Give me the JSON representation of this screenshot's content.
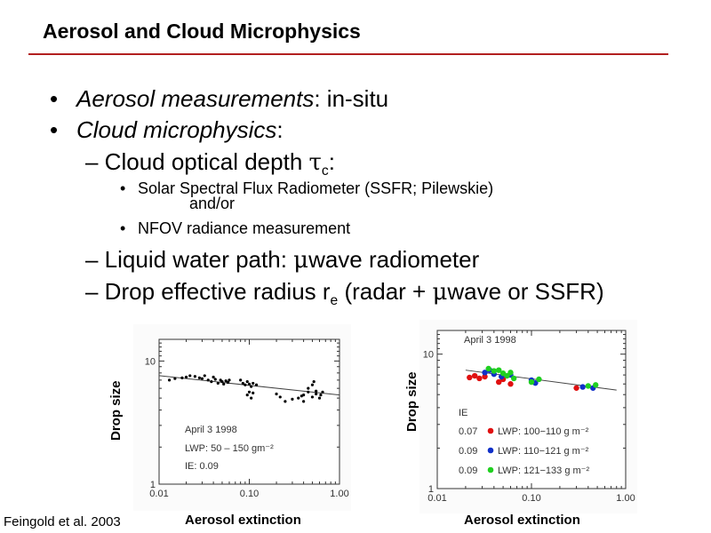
{
  "slide": {
    "title": "Aerosol and Cloud Microphysics",
    "rule_color": "#b21f1f",
    "bullet1_em": "Aerosol measurements",
    "bullet1_rest": ": in-situ",
    "bullet2_em": "Cloud microphysics",
    "bullet2_rest": ":",
    "sub1_text": "– Cloud optical depth ",
    "sub1_tau": "τ",
    "sub1_sub": "c",
    "sub1_end": ":",
    "item1_line1": "Solar Spectral Flux Radiometer (SSFR; Pilewskie)",
    "item1_line2": "and/or",
    "item2": "NFOV radiance measurement",
    "sub2_a": "– Liquid water path: ",
    "sub2_mu": "μ",
    "sub2_b": "wave radiometer",
    "sub3_a": "– Drop effective radius r",
    "sub3_sub": "e",
    "sub3_b": " (radar + ",
    "sub3_mu": "μ",
    "sub3_c": "wave or SSFR)",
    "citation": "Feingold et al. 2003",
    "bullet_glyph": "•"
  },
  "chart_data": [
    {
      "type": "scatter",
      "xscale": "log",
      "yscale": "log",
      "xlim": [
        0.01,
        1.0
      ],
      "ylim": [
        1,
        15
      ],
      "xticks": [
        "0.01",
        "0.10",
        "1.00"
      ],
      "yticks": [
        "10",
        "1"
      ],
      "xlabel": "Aerosol extinction",
      "ylabel": "Drop size",
      "annotations": [
        "April 3 1998",
        "LWP:  50   –   150 gm⁻²",
        "IE:  0.09"
      ],
      "fit_line": [
        [
          0.01,
          7.6
        ],
        [
          1.0,
          5.3
        ]
      ],
      "series": [
        {
          "color": "#000000",
          "points": [
            [
              0.013,
              7.0
            ],
            [
              0.015,
              7.2
            ],
            [
              0.018,
              7.3
            ],
            [
              0.02,
              7.4
            ],
            [
              0.022,
              7.6
            ],
            [
              0.025,
              7.5
            ],
            [
              0.028,
              7.3
            ],
            [
              0.03,
              7.2
            ],
            [
              0.032,
              7.6
            ],
            [
              0.035,
              7.0
            ],
            [
              0.038,
              6.8
            ],
            [
              0.04,
              7.4
            ],
            [
              0.042,
              7.1
            ],
            [
              0.045,
              6.6
            ],
            [
              0.048,
              7.0
            ],
            [
              0.05,
              6.8
            ],
            [
              0.052,
              6.5
            ],
            [
              0.055,
              6.9
            ],
            [
              0.058,
              6.7
            ],
            [
              0.06,
              7.0
            ],
            [
              0.08,
              7.0
            ],
            [
              0.085,
              6.6
            ],
            [
              0.09,
              6.4
            ],
            [
              0.095,
              6.8
            ],
            [
              0.1,
              6.5
            ],
            [
              0.105,
              6.2
            ],
            [
              0.11,
              6.6
            ],
            [
              0.12,
              6.4
            ],
            [
              0.1,
              5.6
            ],
            [
              0.095,
              5.3
            ],
            [
              0.11,
              5.5
            ],
            [
              0.105,
              5.0
            ],
            [
              0.2,
              5.4
            ],
            [
              0.22,
              5.1
            ],
            [
              0.25,
              4.7
            ],
            [
              0.3,
              4.9
            ],
            [
              0.35,
              5.0
            ],
            [
              0.4,
              5.3
            ],
            [
              0.45,
              5.6
            ],
            [
              0.5,
              5.1
            ],
            [
              0.55,
              5.4
            ],
            [
              0.6,
              5.0
            ],
            [
              0.45,
              6.0
            ],
            [
              0.5,
              6.4
            ],
            [
              0.52,
              6.8
            ],
            [
              0.55,
              5.7
            ],
            [
              0.62,
              5.3
            ],
            [
              0.65,
              5.6
            ],
            [
              0.4,
              4.7
            ],
            [
              0.38,
              5.2
            ]
          ]
        }
      ]
    },
    {
      "type": "scatter",
      "xscale": "log",
      "yscale": "log",
      "xlim": [
        0.01,
        1.0
      ],
      "ylim": [
        1,
        15
      ],
      "xticks": [
        "0.01",
        "0.10",
        "1.00"
      ],
      "yticks": [
        "10",
        "1"
      ],
      "xlabel": "Aerosol extinction",
      "ylabel": "Drop size",
      "annotations": [
        "April 3 1998",
        "IE"
      ],
      "fit_line": [
        [
          0.02,
          7.6
        ],
        [
          0.8,
          5.4
        ]
      ],
      "series": [
        {
          "name": "LWP: 100−110 g m⁻²",
          "ie": "0.07",
          "color": "#e01010",
          "points": [
            [
              0.022,
              6.7
            ],
            [
              0.025,
              6.9
            ],
            [
              0.028,
              6.6
            ],
            [
              0.032,
              6.8
            ],
            [
              0.045,
              6.2
            ],
            [
              0.05,
              6.5
            ],
            [
              0.06,
              6.0
            ],
            [
              0.3,
              5.6
            ]
          ]
        },
        {
          "name": "LWP: 110−121 g m⁻²",
          "ie": "0.09",
          "color": "#1030c8",
          "points": [
            [
              0.032,
              7.3
            ],
            [
              0.036,
              7.6
            ],
            [
              0.04,
              7.1
            ],
            [
              0.048,
              6.8
            ],
            [
              0.06,
              7.0
            ],
            [
              0.1,
              6.4
            ],
            [
              0.11,
              6.1
            ],
            [
              0.35,
              5.7
            ],
            [
              0.45,
              5.6
            ]
          ]
        },
        {
          "name": "LWP: 121−133 g m⁻²",
          "ie": "0.09",
          "color": "#20d020",
          "points": [
            [
              0.035,
              7.8
            ],
            [
              0.04,
              7.5
            ],
            [
              0.045,
              7.6
            ],
            [
              0.05,
              7.2
            ],
            [
              0.055,
              6.9
            ],
            [
              0.06,
              7.3
            ],
            [
              0.065,
              6.6
            ],
            [
              0.1,
              6.2
            ],
            [
              0.12,
              6.5
            ],
            [
              0.4,
              5.8
            ],
            [
              0.48,
              5.9
            ]
          ]
        }
      ]
    }
  ]
}
